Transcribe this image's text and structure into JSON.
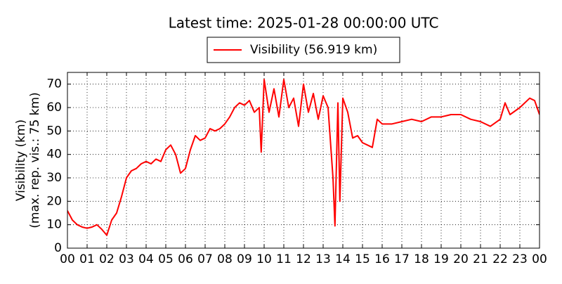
{
  "chart_data": {
    "type": "line",
    "title": "Latest time: 2025-01-28 00:00:00 UTC",
    "ylabel": [
      "Visibility (km)",
      "(max. rep. vis.: 75 km)"
    ],
    "x": [
      0,
      0.25,
      0.5,
      0.75,
      1,
      1.25,
      1.5,
      1.75,
      2,
      2.25,
      2.5,
      2.75,
      3,
      3.25,
      3.5,
      3.75,
      4,
      4.25,
      4.5,
      4.75,
      5,
      5.25,
      5.5,
      5.75,
      6,
      6.25,
      6.5,
      6.75,
      7,
      7.25,
      7.5,
      7.75,
      8,
      8.25,
      8.5,
      8.75,
      9,
      9.25,
      9.5,
      9.75,
      9.85,
      10,
      10.25,
      10.5,
      10.75,
      11,
      11.25,
      11.5,
      11.75,
      12,
      12.25,
      12.5,
      12.75,
      13,
      13.25,
      13.5,
      13.6,
      13.75,
      13.85,
      14,
      14.25,
      14.5,
      14.75,
      15,
      15.25,
      15.5,
      15.75,
      16,
      16.5,
      17,
      17.5,
      18,
      18.5,
      19,
      19.5,
      20,
      20.5,
      21,
      21.5,
      22,
      22.25,
      22.5,
      23,
      23.5,
      23.75,
      24
    ],
    "series": [
      {
        "name": "Visibility (56.919 km)",
        "color": "#ff0000",
        "values": [
          16,
          12,
          10,
          9,
          8.5,
          9,
          10,
          8,
          5.5,
          12,
          15,
          22,
          30,
          33,
          34,
          36,
          37,
          36,
          38,
          37,
          42,
          44,
          40,
          32,
          34,
          42,
          48,
          46,
          47,
          51,
          50,
          51,
          53,
          56,
          60,
          62,
          61,
          63,
          58,
          60,
          41,
          72,
          58,
          68,
          56,
          72,
          60,
          64,
          52,
          70,
          58,
          66,
          55,
          65,
          60,
          30,
          9.5,
          62,
          20,
          64,
          58,
          47,
          48,
          45,
          44,
          43,
          55,
          53,
          53,
          54,
          55,
          54,
          56,
          56,
          57,
          57,
          55,
          54,
          52,
          55,
          62,
          57,
          60,
          64,
          63,
          57
        ]
      }
    ],
    "xlim": [
      0,
      24
    ],
    "xticks": [
      {
        "value": 0,
        "label": "00"
      },
      {
        "value": 1,
        "label": "01"
      },
      {
        "value": 2,
        "label": "02"
      },
      {
        "value": 3,
        "label": "03"
      },
      {
        "value": 4,
        "label": "04"
      },
      {
        "value": 5,
        "label": "05"
      },
      {
        "value": 6,
        "label": "06"
      },
      {
        "value": 7,
        "label": "07"
      },
      {
        "value": 8,
        "label": "08"
      },
      {
        "value": 9,
        "label": "09"
      },
      {
        "value": 10,
        "label": "10"
      },
      {
        "value": 11,
        "label": "11"
      },
      {
        "value": 12,
        "label": "12"
      },
      {
        "value": 13,
        "label": "13"
      },
      {
        "value": 14,
        "label": "14"
      },
      {
        "value": 15,
        "label": "15"
      },
      {
        "value": 16,
        "label": "16"
      },
      {
        "value": 17,
        "label": "17"
      },
      {
        "value": 18,
        "label": "18"
      },
      {
        "value": 19,
        "label": "19"
      },
      {
        "value": 20,
        "label": "20"
      },
      {
        "value": 21,
        "label": "21"
      },
      {
        "value": 22,
        "label": "22"
      },
      {
        "value": 23,
        "label": "23"
      },
      {
        "value": 24,
        "label": "00"
      }
    ],
    "ylim": [
      0,
      75
    ],
    "yticks": [
      0,
      10,
      20,
      30,
      40,
      50,
      60,
      70
    ],
    "grid": true
  }
}
